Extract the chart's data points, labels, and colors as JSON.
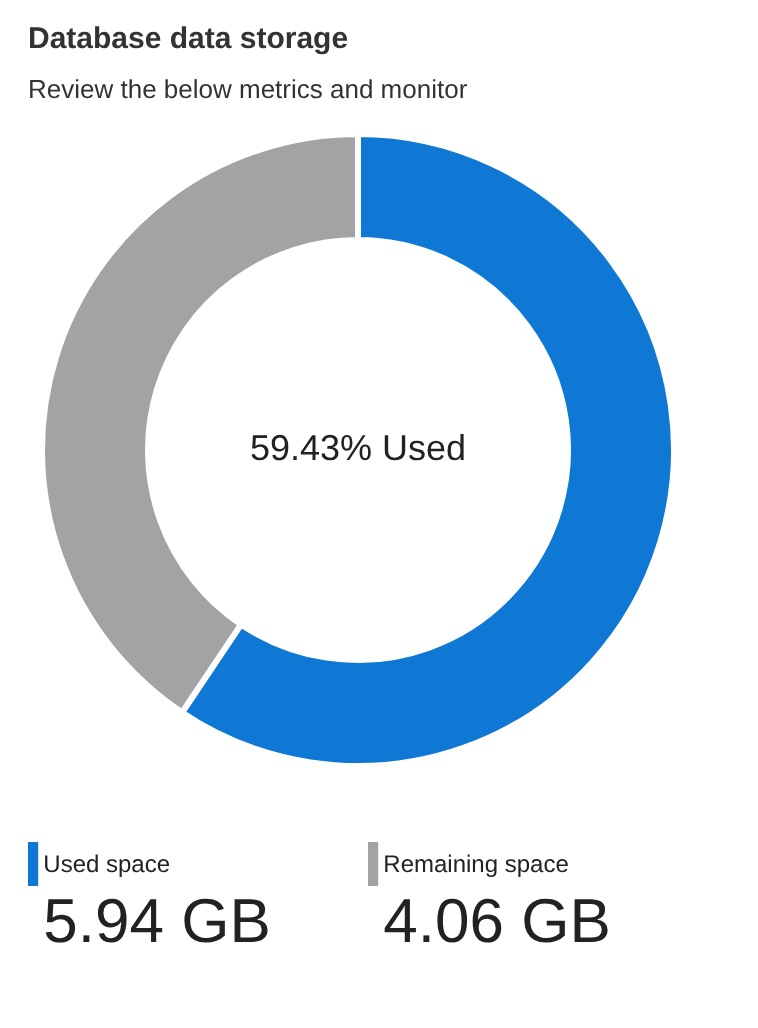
{
  "chart_data": {
    "type": "donut",
    "title": "Database data storage",
    "subtitle": "Review the below metrics and monitor",
    "categories": [
      "Used space",
      "Remaining space"
    ],
    "values": [
      5.94,
      4.06
    ],
    "colors": [
      "#0f78d4",
      "#a3a3a3"
    ],
    "value_labels": [
      "5.94 GB",
      "4.06 GB"
    ],
    "annotations": [
      "59.43% Used"
    ],
    "legend": "bottom"
  }
}
